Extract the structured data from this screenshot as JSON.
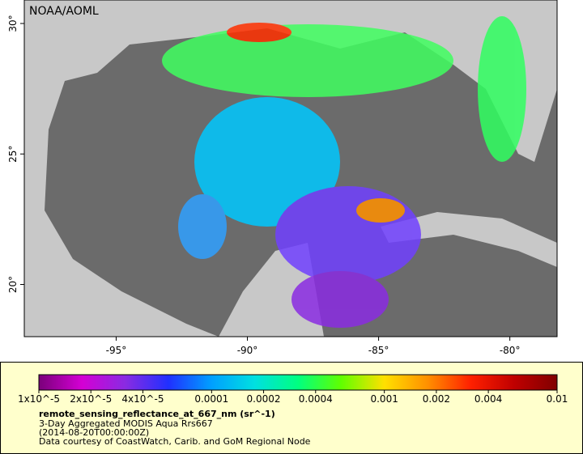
{
  "map": {
    "credit": "NOAA/AOML",
    "xlim": [
      -98.5,
      -78.2
    ],
    "ylim": [
      18.0,
      30.9
    ],
    "xticks": [
      {
        "value": -95,
        "label": "-95°"
      },
      {
        "value": -90,
        "label": "-90°"
      },
      {
        "value": -85,
        "label": "-85°"
      },
      {
        "value": -80,
        "label": "-80°"
      }
    ],
    "yticks": [
      {
        "value": 20,
        "label": "20°"
      },
      {
        "value": 25,
        "label": "25°"
      },
      {
        "value": 30,
        "label": "30°"
      }
    ]
  },
  "colorbar": {
    "log": true,
    "lim": [
      1e-05,
      0.01
    ],
    "colormap": [
      "#7a007a",
      "#d400d4",
      "#8a2be2",
      "#2030ff",
      "#00a0ff",
      "#00e0e0",
      "#00ff80",
      "#60ff00",
      "#ffe000",
      "#ff9000",
      "#ff2000",
      "#c00000",
      "#800000"
    ],
    "ticks": [
      {
        "value": 1e-05,
        "label": "1x10^-5"
      },
      {
        "value": 2e-05,
        "label": "2x10^-5"
      },
      {
        "value": 4e-05,
        "label": "4x10^-5"
      },
      {
        "value": 0.0001,
        "label": "0.0001"
      },
      {
        "value": 0.0002,
        "label": "0.0002"
      },
      {
        "value": 0.0004,
        "label": "0.0004"
      },
      {
        "value": 0.001,
        "label": "0.001"
      },
      {
        "value": 0.002,
        "label": "0.002"
      },
      {
        "value": 0.004,
        "label": "0.004"
      },
      {
        "value": 0.01,
        "label": "0.01"
      }
    ],
    "title": "remote_sensing_reflectance_at_667_nm (sr^-1)",
    "lines": [
      "3-Day Aggregated MODIS Aqua Rrs667",
      "(2014-08-20T00:00:00Z)",
      "Data courtesy of CoastWatch, Carib. and GoM Regional Node"
    ]
  }
}
